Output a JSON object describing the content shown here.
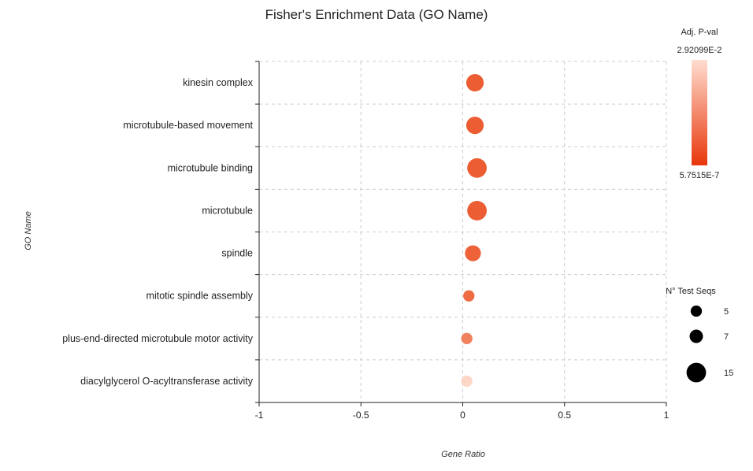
{
  "chart_data": {
    "type": "scatter",
    "title": "Fisher's Enrichment Data (GO Name)",
    "xlabel": "Gene Ratio",
    "ylabel": "GO Name",
    "xlim": [
      -1,
      1
    ],
    "xticks": [
      "-1",
      "-0.5",
      "0",
      "0.5",
      "1"
    ],
    "grid": true,
    "categories": [
      "kinesin complex",
      "microtubule-based movement",
      "microtubule binding",
      "microtubule",
      "spindle",
      "mitotic spindle assembly",
      "plus-end-directed microtubule motor activity",
      "diacylglycerol O-acyltransferase activity"
    ],
    "points": [
      {
        "category": "kinesin complex",
        "x": 0.06,
        "size": 12,
        "color": "#ec5d33"
      },
      {
        "category": "microtubule-based movement",
        "x": 0.06,
        "size": 12,
        "color": "#ec5d33"
      },
      {
        "category": "microtubule binding",
        "x": 0.07,
        "size": 15,
        "color": "#ec5d33"
      },
      {
        "category": "microtubule",
        "x": 0.07,
        "size": 15,
        "color": "#ec5d33"
      },
      {
        "category": "spindle",
        "x": 0.05,
        "size": 10,
        "color": "#ed6239"
      },
      {
        "category": "mitotic spindle assembly",
        "x": 0.03,
        "size": 5,
        "color": "#ee6b43"
      },
      {
        "category": "plus-end-directed microtubule motor activity",
        "x": 0.02,
        "size": 5,
        "color": "#f0815e"
      },
      {
        "category": "diacylglycerol O-acyltransferase activity",
        "x": 0.02,
        "size": 5,
        "color": "#fcd7c8"
      }
    ],
    "color_legend": {
      "title": "Adj. P-val",
      "max_label": "2.92099E-2",
      "min_label": "5.7515E-7",
      "color_high": "#ffddd0",
      "color_low": "#e8360a"
    },
    "size_legend": {
      "title": "N° Test Seqs",
      "entries": [
        {
          "label": "5",
          "size": 5
        },
        {
          "label": "7",
          "size": 7
        },
        {
          "label": "15",
          "size": 15
        }
      ]
    }
  }
}
